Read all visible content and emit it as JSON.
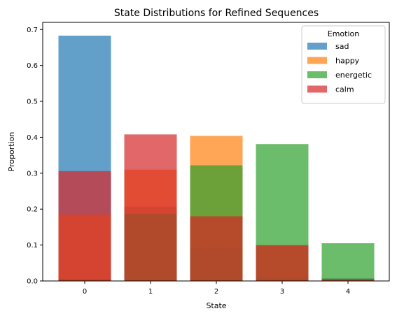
{
  "chart_data": {
    "type": "bar",
    "title": "State Distributions for Refined Sequences",
    "xlabel": "State",
    "ylabel": "Proportion",
    "categories": [
      "0",
      "1",
      "2",
      "3",
      "4"
    ],
    "ylim": [
      0,
      0.72
    ],
    "yticks": [
      "0.0",
      "0.1",
      "0.2",
      "0.3",
      "0.4",
      "0.5",
      "0.6",
      "0.7"
    ],
    "grid": false,
    "overlay": true,
    "bar_alpha": 0.7,
    "legend": {
      "title": "Emotion",
      "placement": "top-right"
    },
    "series": [
      {
        "name": "sad",
        "color": "#1f77b4",
        "values": [
          0.683,
          0.207,
          0.093,
          0.01,
          0.007
        ]
      },
      {
        "name": "happy",
        "color": "#ff7f0e",
        "values": [
          0.185,
          0.31,
          0.404,
          0.098,
          0.003
        ]
      },
      {
        "name": "energetic",
        "color": "#2ca02c",
        "values": [
          0.005,
          0.187,
          0.322,
          0.381,
          0.105
        ]
      },
      {
        "name": "calm",
        "color": "#d62728",
        "values": [
          0.306,
          0.408,
          0.18,
          0.1,
          0.006
        ]
      }
    ]
  }
}
